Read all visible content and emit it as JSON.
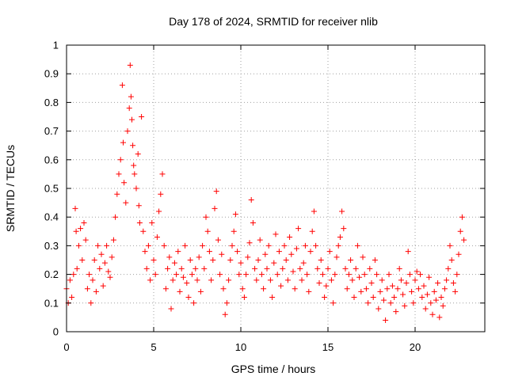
{
  "chart_data": {
    "type": "scatter",
    "title": "Day 178 of 2024, SRMTID for receiver nlib",
    "xlabel": "GPS time / hours",
    "ylabel": "SRMTID / TECUs",
    "xlim": [
      0,
      24
    ],
    "ylim": [
      0,
      1
    ],
    "xticks": [
      0,
      5,
      10,
      15,
      20
    ],
    "xtick_labels": [
      "0",
      "5",
      "10",
      "15",
      "20"
    ],
    "yticks": [
      0,
      0.1,
      0.2,
      0.3,
      0.4,
      0.5,
      0.6,
      0.7,
      0.8,
      0.9,
      1
    ],
    "ytick_labels": [
      "0",
      "0.1",
      "0.2",
      "0.3",
      "0.4",
      "0.5",
      "0.6",
      "0.7",
      "0.8",
      "0.9",
      "1"
    ],
    "grid": true,
    "marker": "+",
    "series_color": "#ff0000",
    "series": [
      {
        "name": "SRMTID",
        "points": [
          [
            0.0,
            0.15
          ],
          [
            0.1,
            0.1
          ],
          [
            0.2,
            0.18
          ],
          [
            0.3,
            0.12
          ],
          [
            0.4,
            0.2
          ],
          [
            0.5,
            0.43
          ],
          [
            0.55,
            0.35
          ],
          [
            0.6,
            0.22
          ],
          [
            0.7,
            0.3
          ],
          [
            0.8,
            0.36
          ],
          [
            0.9,
            0.25
          ],
          [
            1.0,
            0.38
          ],
          [
            1.1,
            0.32
          ],
          [
            1.2,
            0.15
          ],
          [
            1.3,
            0.2
          ],
          [
            1.4,
            0.1
          ],
          [
            1.5,
            0.18
          ],
          [
            1.6,
            0.25
          ],
          [
            1.7,
            0.14
          ],
          [
            1.8,
            0.3
          ],
          [
            1.9,
            0.22
          ],
          [
            2.0,
            0.27
          ],
          [
            2.1,
            0.16
          ],
          [
            2.2,
            0.24
          ],
          [
            2.3,
            0.3
          ],
          [
            2.4,
            0.21
          ],
          [
            2.5,
            0.19
          ],
          [
            2.6,
            0.26
          ],
          [
            2.7,
            0.32
          ],
          [
            2.8,
            0.4
          ],
          [
            2.9,
            0.48
          ],
          [
            3.0,
            0.55
          ],
          [
            3.1,
            0.6
          ],
          [
            3.2,
            0.86
          ],
          [
            3.25,
            0.66
          ],
          [
            3.3,
            0.52
          ],
          [
            3.4,
            0.45
          ],
          [
            3.5,
            0.7
          ],
          [
            3.6,
            0.78
          ],
          [
            3.65,
            0.93
          ],
          [
            3.7,
            0.82
          ],
          [
            3.75,
            0.74
          ],
          [
            3.8,
            0.65
          ],
          [
            3.85,
            0.58
          ],
          [
            3.9,
            0.55
          ],
          [
            4.0,
            0.5
          ],
          [
            4.1,
            0.62
          ],
          [
            4.15,
            0.44
          ],
          [
            4.2,
            0.38
          ],
          [
            4.3,
            0.75
          ],
          [
            4.4,
            0.35
          ],
          [
            4.5,
            0.28
          ],
          [
            4.6,
            0.22
          ],
          [
            4.7,
            0.3
          ],
          [
            4.8,
            0.18
          ],
          [
            4.9,
            0.38
          ],
          [
            5.0,
            0.25
          ],
          [
            5.1,
            0.2
          ],
          [
            5.2,
            0.33
          ],
          [
            5.3,
            0.42
          ],
          [
            5.4,
            0.48
          ],
          [
            5.5,
            0.55
          ],
          [
            5.6,
            0.3
          ],
          [
            5.7,
            0.15
          ],
          [
            5.8,
            0.22
          ],
          [
            5.9,
            0.26
          ],
          [
            6.0,
            0.08
          ],
          [
            6.1,
            0.18
          ],
          [
            6.2,
            0.24
          ],
          [
            6.3,
            0.2
          ],
          [
            6.4,
            0.28
          ],
          [
            6.5,
            0.14
          ],
          [
            6.6,
            0.22
          ],
          [
            6.7,
            0.19
          ],
          [
            6.8,
            0.3
          ],
          [
            6.9,
            0.17
          ],
          [
            7.0,
            0.12
          ],
          [
            7.1,
            0.25
          ],
          [
            7.2,
            0.2
          ],
          [
            7.3,
            0.1
          ],
          [
            7.4,
            0.22
          ],
          [
            7.5,
            0.18
          ],
          [
            7.6,
            0.26
          ],
          [
            7.7,
            0.14
          ],
          [
            7.8,
            0.3
          ],
          [
            7.9,
            0.22
          ],
          [
            8.0,
            0.4
          ],
          [
            8.1,
            0.35
          ],
          [
            8.2,
            0.28
          ],
          [
            8.3,
            0.18
          ],
          [
            8.4,
            0.25
          ],
          [
            8.5,
            0.43
          ],
          [
            8.6,
            0.49
          ],
          [
            8.7,
            0.32
          ],
          [
            8.8,
            0.2
          ],
          [
            8.9,
            0.27
          ],
          [
            9.0,
            0.15
          ],
          [
            9.1,
            0.06
          ],
          [
            9.2,
            0.1
          ],
          [
            9.3,
            0.18
          ],
          [
            9.4,
            0.25
          ],
          [
            9.5,
            0.3
          ],
          [
            9.6,
            0.35
          ],
          [
            9.7,
            0.41
          ],
          [
            9.8,
            0.28
          ],
          [
            9.9,
            0.2
          ],
          [
            10.0,
            0.24
          ],
          [
            10.1,
            0.15
          ],
          [
            10.2,
            0.12
          ],
          [
            10.3,
            0.2
          ],
          [
            10.4,
            0.26
          ],
          [
            10.5,
            0.31
          ],
          [
            10.6,
            0.46
          ],
          [
            10.7,
            0.38
          ],
          [
            10.8,
            0.22
          ],
          [
            10.9,
            0.18
          ],
          [
            11.0,
            0.25
          ],
          [
            11.1,
            0.32
          ],
          [
            11.2,
            0.2
          ],
          [
            11.3,
            0.15
          ],
          [
            11.4,
            0.27
          ],
          [
            11.5,
            0.22
          ],
          [
            11.6,
            0.3
          ],
          [
            11.7,
            0.18
          ],
          [
            11.8,
            0.12
          ],
          [
            11.9,
            0.24
          ],
          [
            12.0,
            0.34
          ],
          [
            12.1,
            0.2
          ],
          [
            12.2,
            0.28
          ],
          [
            12.3,
            0.16
          ],
          [
            12.4,
            0.22
          ],
          [
            12.5,
            0.3
          ],
          [
            12.6,
            0.25
          ],
          [
            12.7,
            0.18
          ],
          [
            12.8,
            0.33
          ],
          [
            12.9,
            0.27
          ],
          [
            13.0,
            0.21
          ],
          [
            13.1,
            0.15
          ],
          [
            13.2,
            0.29
          ],
          [
            13.3,
            0.36
          ],
          [
            13.4,
            0.22
          ],
          [
            13.5,
            0.18
          ],
          [
            13.6,
            0.24
          ],
          [
            13.7,
            0.3
          ],
          [
            13.8,
            0.2
          ],
          [
            13.9,
            0.14
          ],
          [
            14.0,
            0.28
          ],
          [
            14.1,
            0.35
          ],
          [
            14.2,
            0.42
          ],
          [
            14.3,
            0.3
          ],
          [
            14.4,
            0.22
          ],
          [
            14.5,
            0.17
          ],
          [
            14.6,
            0.25
          ],
          [
            14.7,
            0.2
          ],
          [
            14.8,
            0.12
          ],
          [
            14.9,
            0.16
          ],
          [
            15.0,
            0.22
          ],
          [
            15.1,
            0.28
          ],
          [
            15.2,
            0.18
          ],
          [
            15.3,
            0.1
          ],
          [
            15.4,
            0.2
          ],
          [
            15.5,
            0.26
          ],
          [
            15.6,
            0.3
          ],
          [
            15.7,
            0.33
          ],
          [
            15.8,
            0.42
          ],
          [
            15.9,
            0.36
          ],
          [
            16.0,
            0.22
          ],
          [
            16.1,
            0.15
          ],
          [
            16.2,
            0.2
          ],
          [
            16.3,
            0.25
          ],
          [
            16.4,
            0.18
          ],
          [
            16.5,
            0.12
          ],
          [
            16.6,
            0.22
          ],
          [
            16.7,
            0.3
          ],
          [
            16.8,
            0.19
          ],
          [
            16.9,
            0.14
          ],
          [
            17.0,
            0.26
          ],
          [
            17.1,
            0.2
          ],
          [
            17.2,
            0.15
          ],
          [
            17.3,
            0.1
          ],
          [
            17.4,
            0.22
          ],
          [
            17.5,
            0.17
          ],
          [
            17.6,
            0.12
          ],
          [
            17.7,
            0.25
          ],
          [
            17.8,
            0.2
          ],
          [
            17.9,
            0.08
          ],
          [
            18.0,
            0.14
          ],
          [
            18.1,
            0.18
          ],
          [
            18.2,
            0.11
          ],
          [
            18.3,
            0.04
          ],
          [
            18.4,
            0.15
          ],
          [
            18.5,
            0.2
          ],
          [
            18.6,
            0.1
          ],
          [
            18.7,
            0.16
          ],
          [
            18.8,
            0.12
          ],
          [
            18.9,
            0.07
          ],
          [
            19.0,
            0.15
          ],
          [
            19.1,
            0.22
          ],
          [
            19.2,
            0.18
          ],
          [
            19.3,
            0.13
          ],
          [
            19.4,
            0.09
          ],
          [
            19.5,
            0.17
          ],
          [
            19.6,
            0.28
          ],
          [
            19.7,
            0.2
          ],
          [
            19.8,
            0.14
          ],
          [
            19.9,
            0.1
          ],
          [
            20.0,
            0.18
          ],
          [
            20.1,
            0.21
          ],
          [
            20.2,
            0.15
          ],
          [
            20.3,
            0.2
          ],
          [
            20.4,
            0.12
          ],
          [
            20.5,
            0.16
          ],
          [
            20.6,
            0.08
          ],
          [
            20.7,
            0.13
          ],
          [
            20.8,
            0.19
          ],
          [
            20.9,
            0.1
          ],
          [
            21.0,
            0.06
          ],
          [
            21.1,
            0.14
          ],
          [
            21.2,
            0.11
          ],
          [
            21.3,
            0.17
          ],
          [
            21.4,
            0.05
          ],
          [
            21.5,
            0.12
          ],
          [
            21.6,
            0.09
          ],
          [
            21.7,
            0.15
          ],
          [
            21.8,
            0.18
          ],
          [
            21.9,
            0.22
          ],
          [
            22.0,
            0.3
          ],
          [
            22.1,
            0.25
          ],
          [
            22.2,
            0.17
          ],
          [
            22.3,
            0.14
          ],
          [
            22.4,
            0.2
          ],
          [
            22.5,
            0.27
          ],
          [
            22.6,
            0.35
          ],
          [
            22.7,
            0.4
          ],
          [
            22.8,
            0.32
          ]
        ]
      }
    ]
  }
}
